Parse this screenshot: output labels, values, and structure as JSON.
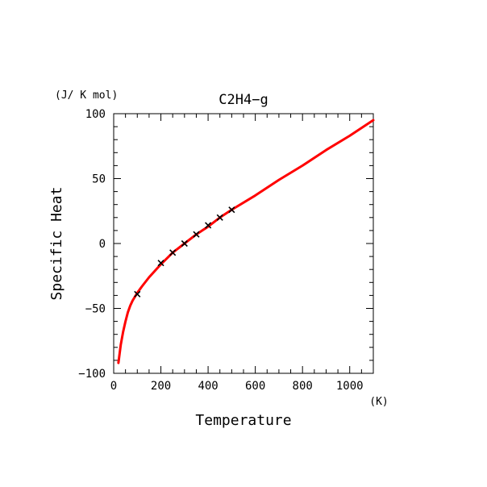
{
  "chart_data": {
    "type": "line",
    "title": "C2H4−g",
    "xlabel": "Temperature",
    "ylabel": "Specific Heat",
    "x_unit": "(K)",
    "y_unit": "(J/ K mol)",
    "xlim": [
      0,
      1100
    ],
    "ylim": [
      -100,
      100
    ],
    "x_ticks": [
      "0",
      "200",
      "400",
      "600",
      "800",
      "1000"
    ],
    "y_ticks": [
      "−100",
      "−50",
      "0",
      "50",
      "100"
    ],
    "x_tick_values": [
      0,
      200,
      400,
      600,
      800,
      1000
    ],
    "y_tick_values": [
      -100,
      -50,
      0,
      50,
      100
    ],
    "grid": false,
    "series": [
      {
        "kind": "curve",
        "color": "#ff0000",
        "x": [
          20,
          30,
          40,
          50,
          60,
          70,
          80,
          100,
          120,
          150,
          200,
          250,
          300,
          350,
          400,
          450,
          500,
          600,
          700,
          800,
          900,
          1000,
          1100
        ],
        "y": [
          -92,
          -78,
          -68,
          -60,
          -53,
          -48,
          -44,
          -38,
          -33,
          -26,
          -16,
          -7,
          0,
          7,
          13,
          20,
          26,
          37,
          49,
          60,
          72,
          83,
          95
        ]
      },
      {
        "kind": "markers",
        "marker": "x",
        "color": "#000000",
        "x": [
          100,
          200,
          250,
          300,
          350,
          400,
          450,
          500
        ],
        "y": [
          -39,
          -15,
          -7,
          0,
          7,
          14,
          20,
          26
        ]
      }
    ]
  }
}
